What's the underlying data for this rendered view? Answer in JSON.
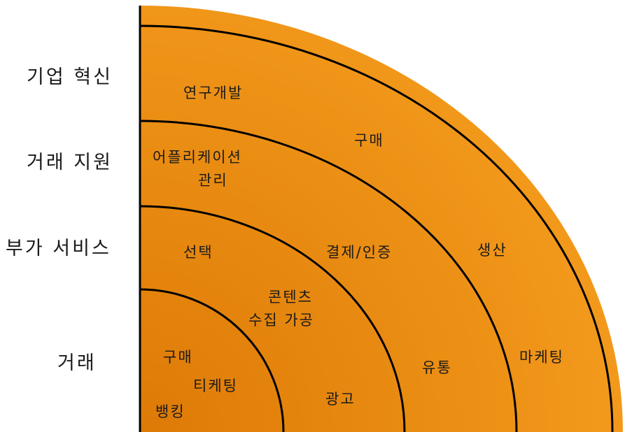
{
  "colors": {
    "band_fill_light": "#F39A1C",
    "band_fill_dark": "#DD7A06",
    "arc_stroke": "#000000",
    "label_text": "#1a1a1a"
  },
  "layers": [
    {
      "label": "기업 혁신"
    },
    {
      "label": "거래 지원"
    },
    {
      "label": "부가 서비스"
    },
    {
      "label": "거래"
    }
  ],
  "regions": {
    "rnd": "연구개발",
    "purchasing_outer": "구매",
    "app_mgmt_line1": "어플리케이션",
    "app_mgmt_line2": "관리",
    "production": "생산",
    "selection": "선택",
    "payment_auth": "결제/인증",
    "content_line1": "콘텐츠",
    "content_line2": "수집 가공",
    "purchasing_inner": "구매",
    "ticketing": "티케팅",
    "banking": "뱅킹",
    "advertising": "광고",
    "distribution": "유통",
    "marketing": "마케팅"
  }
}
